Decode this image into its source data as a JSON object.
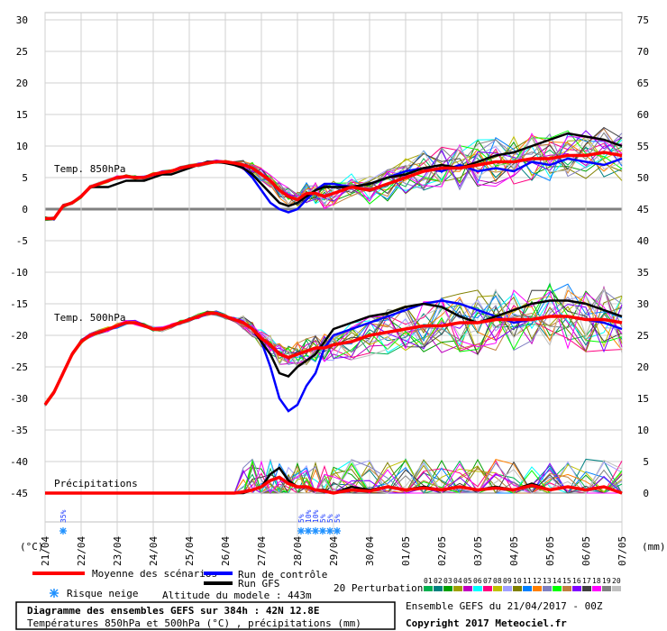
{
  "chart_data": {
    "type": "line",
    "title": "Diagramme des ensembles GEFS sur 384h : 42N 12.8E",
    "subtitle": "Températures 850hPa et 500hPa (°C) , précipitations (mm)",
    "run_info": "Ensemble GEFS du 21/04/2017 - 00Z",
    "copyright": "Copyright 2017 Meteociel.fr",
    "altitude": "Altitude du modele : 443m",
    "left_unit": "(°C)",
    "right_unit": "(mm)",
    "ylim_left": [
      -45,
      30
    ],
    "left_ticks": [
      "30",
      "25",
      "20",
      "15",
      "10",
      "5",
      "0",
      "-5",
      "-10",
      "-15",
      "-20",
      "-25",
      "-30",
      "-35",
      "-40",
      "-45"
    ],
    "right_ticks": [
      "75",
      "70",
      "65",
      "60",
      "55",
      "50",
      "45",
      "40",
      "35",
      "30",
      "25",
      "20",
      "15",
      "10",
      "5",
      "0"
    ],
    "date_labels": [
      "21/04",
      "22/04",
      "23/04",
      "24/04",
      "25/04",
      "26/04",
      "27/04",
      "28/04",
      "29/04",
      "30/04",
      "01/05",
      "02/05",
      "03/05",
      "04/05",
      "05/05",
      "06/05",
      "07/05"
    ],
    "section_labels": {
      "t850": "Temp. 850hPa",
      "t500": "Temp. 500hPa",
      "precip": "Précipitations"
    },
    "snow_risk": {
      "day_index": [
        0,
        6.6,
        6.8,
        7.0,
        7.2,
        7.4,
        7.6
      ],
      "labels": [
        "35%",
        "5%",
        "10%",
        "10%",
        "5%",
        "5%",
        "5%"
      ]
    },
    "x_days": [
      0,
      0.25,
      0.5,
      0.75,
      1,
      1.25,
      1.5,
      1.75,
      2,
      2.25,
      2.5,
      2.75,
      3,
      3.25,
      3.5,
      3.75,
      4,
      4.25,
      4.5,
      4.75,
      5,
      5.25,
      5.5,
      5.75,
      6,
      6.25,
      6.5,
      6.75,
      7,
      7.25,
      7.5,
      7.75,
      8,
      8.5,
      9,
      9.5,
      10,
      10.5,
      11,
      11.5,
      12,
      12.5,
      13,
      13.5,
      14,
      14.5,
      15,
      15.5,
      16
    ],
    "series": [
      {
        "name": "Moyenne des scénarios",
        "color": "#ff0000",
        "t850": [
          -1.5,
          -1.5,
          0.5,
          1,
          2,
          3.5,
          4,
          4.5,
          5,
          5.2,
          5,
          5,
          5.5,
          5.8,
          6,
          6.5,
          6.8,
          7,
          7.3,
          7.5,
          7.5,
          7.3,
          7,
          6.5,
          5.5,
          4.5,
          3,
          2,
          1.5,
          2.5,
          2.5,
          2,
          2.5,
          3.5,
          3,
          4,
          5,
          6,
          6.5,
          6.5,
          7,
          7.5,
          7.5,
          8,
          8,
          8.5,
          8.5,
          9,
          8.5
        ],
        "t500": [
          -31,
          -29,
          -26,
          -23,
          -21,
          -20,
          -19.5,
          -19,
          -18.5,
          -18,
          -18,
          -18.5,
          -19,
          -19,
          -18.5,
          -18,
          -17.5,
          -17,
          -16.5,
          -16.5,
          -17,
          -17.5,
          -18,
          -19,
          -20.5,
          -21.5,
          -23,
          -23.5,
          -23,
          -22.5,
          -22,
          -22,
          -21.5,
          -21,
          -20,
          -19.5,
          -19,
          -18.5,
          -18.5,
          -18,
          -18,
          -17.5,
          -17.5,
          -17.5,
          -17,
          -17,
          -17.5,
          -17.5,
          -18
        ],
        "precip": [
          0,
          0,
          0,
          0,
          0,
          0,
          0,
          0,
          0,
          0,
          0,
          0,
          0,
          0,
          0,
          0,
          0,
          0,
          0,
          0,
          0,
          0,
          0.2,
          0.5,
          1,
          2,
          2.5,
          1.5,
          1,
          1,
          0.5,
          0.3,
          0,
          0.5,
          0.3,
          1,
          0.5,
          0.8,
          0.5,
          1,
          0.5,
          0.8,
          0.5,
          1.2,
          0.5,
          1,
          0.5,
          1,
          0
        ]
      },
      {
        "name": "Run de contrôle",
        "color": "#0000ff",
        "t850": [
          -1.5,
          -1.5,
          0.5,
          1,
          2,
          3.5,
          4,
          4.5,
          5,
          5.2,
          5,
          5,
          5.5,
          5.8,
          6,
          6.5,
          6.8,
          7,
          7.5,
          7.5,
          7.5,
          7,
          6.5,
          5,
          3,
          1,
          0,
          -0.5,
          0,
          1.5,
          3,
          4,
          4,
          3.5,
          4,
          5,
          6,
          6.5,
          6,
          7,
          6,
          6.5,
          6,
          7.5,
          7,
          8,
          7.5,
          7,
          8
        ],
        "t500": [
          -31,
          -29,
          -26,
          -23,
          -21,
          -20,
          -19.5,
          -19,
          -18.5,
          -18,
          -18,
          -18.5,
          -19,
          -19,
          -18.5,
          -18,
          -17.5,
          -17,
          -16.5,
          -16.5,
          -17,
          -17.5,
          -18,
          -19,
          -21,
          -25,
          -30,
          -32,
          -31,
          -28,
          -26,
          -22,
          -20,
          -19,
          -18,
          -17,
          -16,
          -15,
          -14.5,
          -15,
          -16,
          -17,
          -18,
          -17.5,
          -17,
          -17,
          -17.5,
          -18,
          -19
        ]
      },
      {
        "name": "Run GFS",
        "color": "#000000",
        "t850": [
          -1.5,
          -1.5,
          0.5,
          1,
          2,
          3.5,
          3.5,
          3.5,
          4,
          4.5,
          4.5,
          4.5,
          5,
          5.5,
          5.5,
          6,
          6.5,
          7,
          7.5,
          7.5,
          7.3,
          7,
          6.5,
          5.5,
          4,
          2.5,
          1,
          0.5,
          1,
          2,
          3,
          3.5,
          3.5,
          3.5,
          4,
          5,
          5.5,
          6.5,
          7,
          6.5,
          7.5,
          8.5,
          9,
          10,
          11,
          12,
          11.5,
          11,
          10
        ],
        "t500": [
          -31,
          -29,
          -26,
          -23,
          -21,
          -20,
          -19.5,
          -19,
          -18.5,
          -18,
          -18,
          -18.5,
          -19,
          -19,
          -18.5,
          -18,
          -17.5,
          -17,
          -16.5,
          -16.5,
          -17,
          -17.5,
          -18,
          -19,
          -21,
          -23,
          -26,
          -26.5,
          -25,
          -24,
          -23,
          -21,
          -19,
          -18,
          -17,
          -16.5,
          -15.5,
          -15,
          -15.5,
          -17,
          -18,
          -17,
          -16,
          -15,
          -14.5,
          -14.5,
          -15,
          -16,
          -17
        ],
        "precip": [
          0,
          0,
          0,
          0,
          0,
          0,
          0,
          0,
          0,
          0,
          0,
          0,
          0,
          0,
          0,
          0,
          0,
          0,
          0,
          0,
          0,
          0,
          0,
          0.5,
          1,
          3,
          4,
          2,
          1,
          1,
          0.5,
          0.5,
          0,
          1,
          0.5,
          1,
          0.5,
          1,
          0.5,
          1,
          0.5,
          1,
          0.5,
          1.5,
          0.5,
          1,
          0.5,
          1,
          0
        ]
      }
    ],
    "perturbation_colors": [
      "#00b050",
      "#008080",
      "#00a000",
      "#a0a000",
      "#c000c0",
      "#00ffff",
      "#ff0080",
      "#c0c000",
      "#a0a0ff",
      "#808000",
      "#0080ff",
      "#ff8000",
      "#8080c0",
      "#00ff00",
      "#c08040",
      "#8000ff",
      "#404040",
      "#ff00ff",
      "#808080",
      "#c0c0c0"
    ],
    "legend": {
      "mean": "Moyenne des scénarios",
      "control": "Run de contrôle",
      "gfs": "Run GFS",
      "perturbations_label": "20 Perturbations",
      "perturbation_numbers": [
        "01",
        "02",
        "03",
        "04",
        "05",
        "06",
        "07",
        "08",
        "09",
        "10",
        "11",
        "12",
        "13",
        "14",
        "15",
        "16",
        "17",
        "18",
        "19",
        "20"
      ],
      "snow": "Risque neige"
    }
  }
}
